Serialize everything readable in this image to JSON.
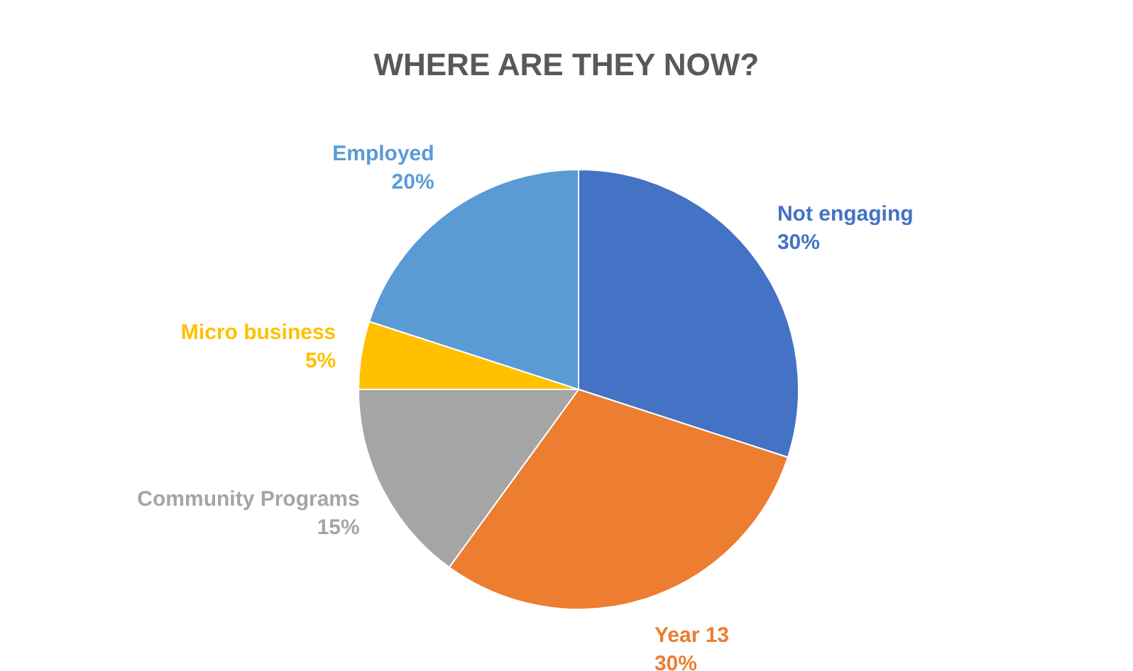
{
  "chart_data": {
    "type": "pie",
    "title": "WHERE ARE THEY NOW?",
    "categories": [
      "Not engaging",
      "Year 13",
      "Community Programs",
      "Micro business",
      "Employed"
    ],
    "values": [
      30,
      30,
      15,
      5,
      20
    ],
    "colors": [
      "#4472c4",
      "#ed7d31",
      "#a5a5a5",
      "#ffc000",
      "#5b9bd5"
    ],
    "value_labels": [
      "30%",
      "30%",
      "15%",
      "5%",
      "20%"
    ],
    "legend": false
  }
}
